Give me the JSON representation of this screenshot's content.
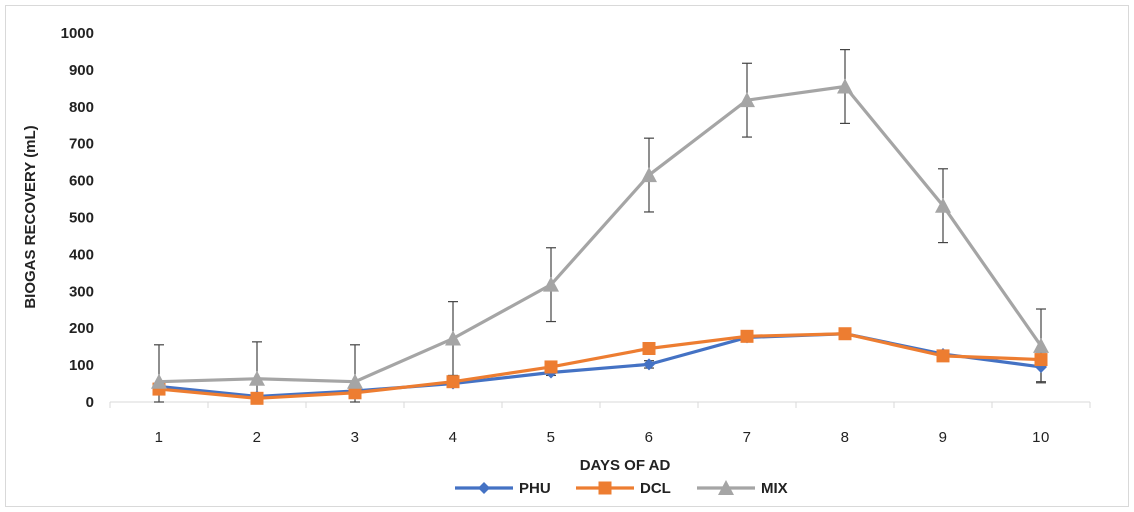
{
  "chart_data": {
    "type": "line",
    "xlabel": "DAYS OF AD",
    "ylabel": "BIOGAS RECOVERY  (mL)",
    "categories": [
      "1",
      "2",
      "3",
      "4",
      "5",
      "6",
      "7",
      "8",
      "9",
      "10"
    ],
    "ylim": [
      0,
      1000
    ],
    "yticks": [
      0,
      100,
      200,
      300,
      400,
      500,
      600,
      700,
      800,
      900,
      1000
    ],
    "grid": false,
    "legend": "bottom",
    "series": [
      {
        "name": "PHU",
        "color": "#4472c4",
        "marker": "diamond",
        "values": [
          42,
          15,
          30,
          50,
          80,
          102,
          175,
          185,
          130,
          95
        ],
        "error": [
          5,
          4,
          4,
          5,
          8,
          10,
          8,
          8,
          10,
          40
        ]
      },
      {
        "name": "DCL",
        "color": "#ed7d31",
        "marker": "square",
        "values": [
          35,
          10,
          25,
          55,
          95,
          145,
          178,
          185,
          125,
          115
        ],
        "error": [
          5,
          4,
          4,
          5,
          5,
          5,
          5,
          5,
          5,
          5
        ]
      },
      {
        "name": "MIX",
        "color": "#a5a5a5",
        "marker": "triangle",
        "values": [
          55,
          63,
          55,
          172,
          318,
          615,
          818,
          855,
          532,
          152
        ],
        "error": [
          100,
          100,
          100,
          100,
          100,
          100,
          100,
          100,
          100,
          100
        ]
      }
    ]
  }
}
